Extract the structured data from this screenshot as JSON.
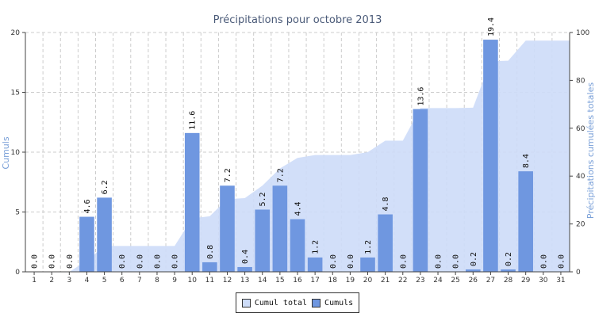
{
  "chart_data": {
    "type": "bar",
    "title": "Précipitations pour octobre 2013",
    "ylabel": "Cumuls",
    "y2label": "Précipitations cumulées totales",
    "categories": [
      "1",
      "2",
      "3",
      "4",
      "5",
      "6",
      "7",
      "8",
      "9",
      "10",
      "11",
      "12",
      "13",
      "14",
      "15",
      "16",
      "17",
      "18",
      "19",
      "20",
      "21",
      "22",
      "23",
      "24",
      "25",
      "26",
      "27",
      "28",
      "29",
      "30",
      "31"
    ],
    "series": [
      {
        "name": "Cumuls",
        "type": "bar",
        "axis": "left",
        "color": "#6f97e0",
        "values": [
          0.0,
          0.0,
          0.0,
          4.6,
          6.2,
          0.0,
          0.0,
          0.0,
          0.0,
          11.6,
          0.8,
          7.2,
          0.4,
          5.2,
          7.2,
          4.4,
          1.2,
          0.0,
          0.0,
          1.2,
          4.8,
          0.0,
          13.6,
          0.0,
          0.0,
          0.2,
          19.4,
          0.2,
          8.4,
          0.0,
          0.0
        ],
        "labels": [
          "0.0",
          "0.0",
          "0.0",
          "4.6",
          "6.2",
          "0.0",
          "0.0",
          "0.0",
          "0.0",
          "11.6",
          "0.8",
          "7.2",
          "0.4",
          "5.2",
          "7.2",
          "4.4",
          "1.2",
          "0.0",
          "0.0",
          "1.2",
          "4.8",
          "0.0",
          "13.6",
          "0.0",
          "0.0",
          "0.2",
          "19.4",
          "0.2",
          "8.4",
          "0.0",
          "0.0"
        ]
      },
      {
        "name": "Cumul total",
        "type": "area",
        "axis": "right",
        "color": "#cddcf8",
        "values": [
          0.0,
          0.0,
          0.0,
          4.6,
          10.8,
          10.8,
          10.8,
          10.8,
          10.8,
          22.4,
          23.2,
          30.4,
          30.8,
          36.0,
          43.2,
          47.6,
          48.8,
          48.8,
          48.8,
          50.0,
          54.8,
          54.8,
          68.4,
          68.4,
          68.4,
          68.6,
          88.0,
          88.2,
          96.6,
          96.6,
          96.6
        ]
      }
    ],
    "ylim": [
      0,
      20
    ],
    "y2lim": [
      0,
      100
    ],
    "yticks": [
      0,
      5,
      10,
      15,
      20
    ],
    "y2ticks": [
      0,
      20,
      40,
      60,
      80,
      100
    ],
    "grid": true,
    "legend_position": "bottom-center"
  }
}
